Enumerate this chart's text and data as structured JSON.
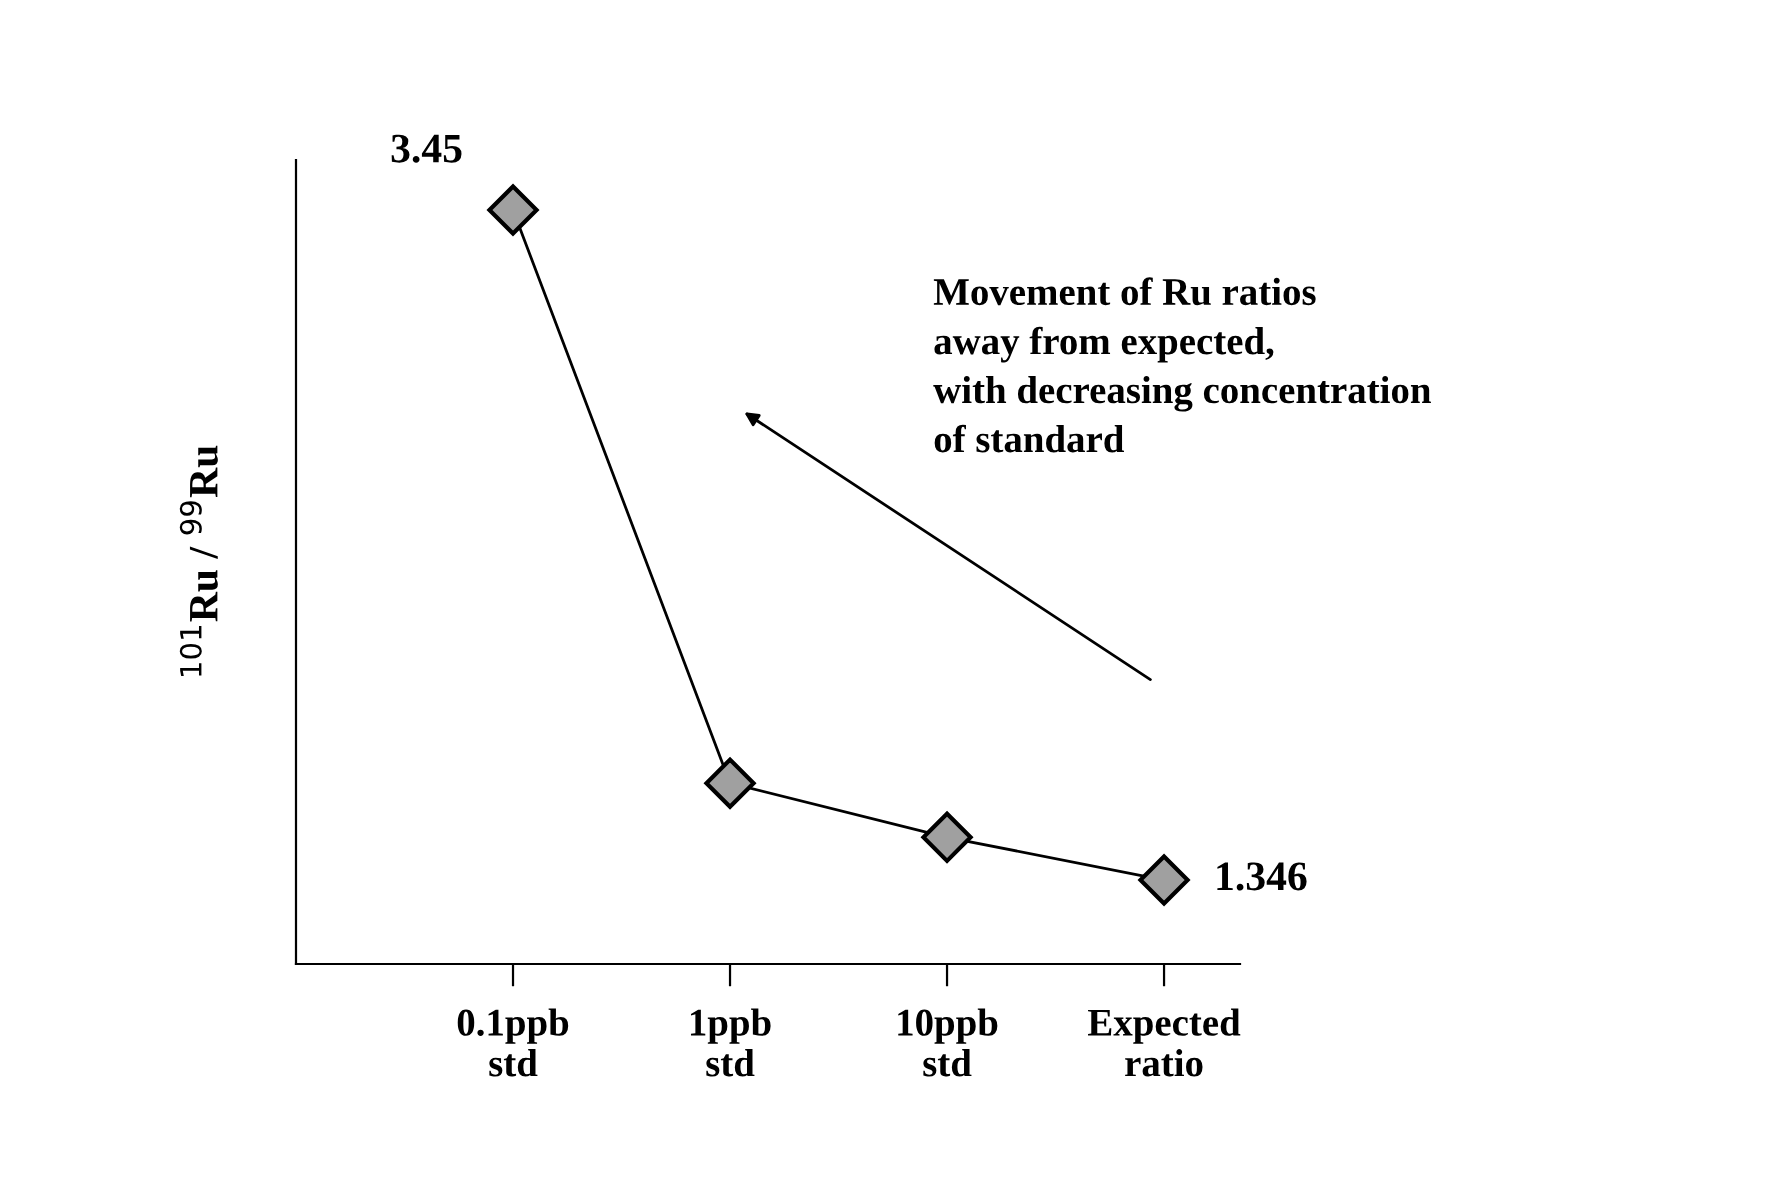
{
  "chart_data": {
    "type": "line",
    "ylabel": "$^{101}$Ru / $^{99}$Ru",
    "categories": [
      "0.1ppb\nstd",
      "1ppb\nstd",
      "10ppb\nstd",
      "Expected\nratio"
    ],
    "series": [
      {
        "color": "#000000",
        "values": [
          3.45,
          1.65,
          1.48,
          1.346
        ],
        "value_labels": [
          "3.45",
          null,
          null,
          "1.346"
        ]
      }
    ],
    "marker": "diamond",
    "line_style": "solid",
    "grid": false,
    "legend": false,
    "annotations": [
      "Movement of Ru ratios\naway from expected,\nwith decreasing concentration\nof standard"
    ]
  }
}
